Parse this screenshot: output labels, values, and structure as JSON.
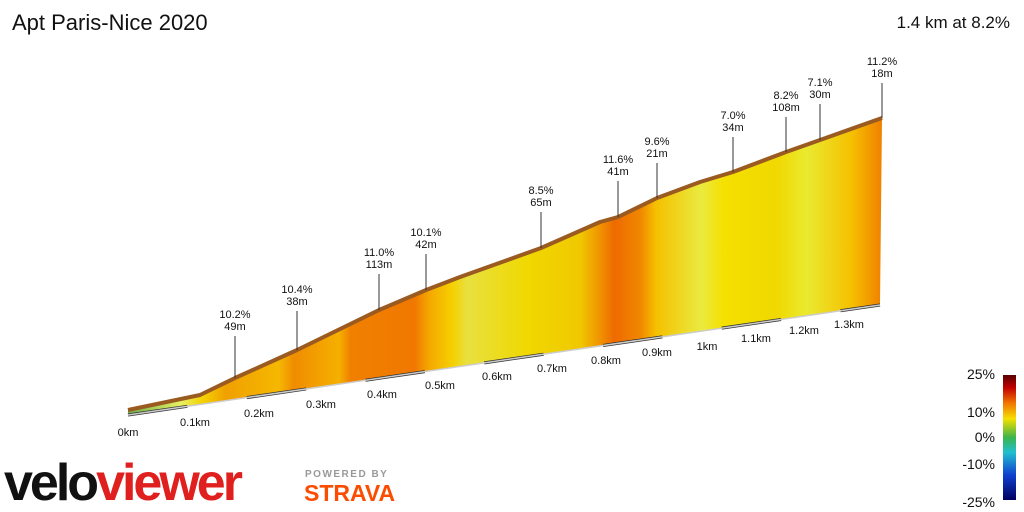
{
  "title": "Apt Paris-Nice 2020",
  "summary": "1.4 km at 8.2%",
  "segments": [
    {
      "gradient": "10.2%",
      "length": "49m"
    },
    {
      "gradient": "10.4%",
      "length": "38m"
    },
    {
      "gradient": "11.0%",
      "length": "113m"
    },
    {
      "gradient": "10.1%",
      "length": "42m"
    },
    {
      "gradient": "8.5%",
      "length": "65m"
    },
    {
      "gradient": "11.6%",
      "length": "41m"
    },
    {
      "gradient": "9.6%",
      "length": "21m"
    },
    {
      "gradient": "7.0%",
      "length": "34m"
    },
    {
      "gradient": "8.2%",
      "length": "108m"
    },
    {
      "gradient": "7.1%",
      "length": "30m"
    },
    {
      "gradient": "11.2%",
      "length": "18m"
    }
  ],
  "distance_labels": [
    "0km",
    "0.1km",
    "0.2km",
    "0.3km",
    "0.4km",
    "0.5km",
    "0.6km",
    "0.7km",
    "0.8km",
    "0.9km",
    "1km",
    "1.1km",
    "1.2km",
    "1.3km"
  ],
  "legend": {
    "labels": [
      "25%",
      "10%",
      "0%",
      "-10%",
      "-25%"
    ]
  },
  "brand": {
    "logo_left": "velo",
    "logo_right": "viewer",
    "powered_by": "POWERED BY",
    "strava": "STRAVA"
  }
}
